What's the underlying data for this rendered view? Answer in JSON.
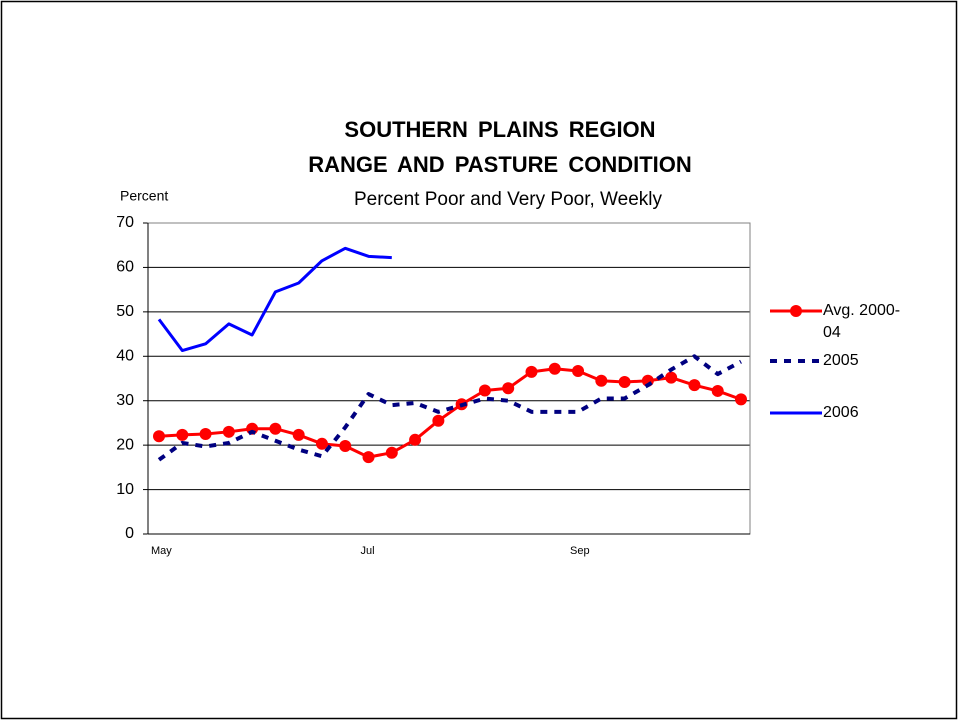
{
  "chart_data": {
    "type": "line",
    "title": "SOUTHERN PLAINS REGION",
    "title2": "RANGE AND PASTURE CONDITION",
    "subtitle": "Percent Poor and Very Poor, Weekly",
    "y_label": "Percent",
    "categories": [
      "May",
      null,
      null,
      null,
      null,
      null,
      null,
      null,
      null,
      "Jul",
      null,
      null,
      null,
      null,
      null,
      null,
      null,
      null,
      "Sep",
      null,
      null,
      null,
      null,
      null,
      null,
      null
    ],
    "series": [
      {
        "name": "Avg. 2000-04",
        "color": "#ff0000",
        "style": "solid-marker",
        "values": [
          22,
          22.3,
          22.5,
          23,
          23.7,
          23.7,
          22.3,
          20.3,
          19.8,
          17.3,
          18.3,
          21.2,
          25.5,
          29.2,
          32.3,
          32.8,
          36.5,
          37.2,
          36.7,
          34.5,
          34.2,
          34.5,
          35.2,
          33.5,
          32.2,
          30.3
        ]
      },
      {
        "name": "2005",
        "color": "#000080",
        "style": "dashed",
        "values": [
          16.7,
          20.5,
          19.7,
          20.5,
          23,
          21,
          19,
          17.5,
          24,
          31.5,
          29,
          29.5,
          27.5,
          29,
          30.5,
          30,
          27.5,
          27.5,
          27.5,
          30.5,
          30.5,
          33.5,
          37,
          40,
          36,
          38.8
        ]
      },
      {
        "name": "2006",
        "color": "#0000ff",
        "style": "solid",
        "values": [
          48.3,
          41.3,
          42.8,
          47.3,
          44.8,
          54.5,
          56.5,
          61.5,
          64.3,
          62.5,
          62.2,
          null,
          null,
          null,
          null,
          null,
          null,
          null,
          null,
          null,
          null,
          null,
          null,
          null,
          null,
          null
        ]
      }
    ],
    "ylim": [
      0,
      70
    ],
    "yticks": [
      0,
      10,
      20,
      30,
      40,
      50,
      60,
      70
    ],
    "grid": true,
    "legend": "right"
  }
}
